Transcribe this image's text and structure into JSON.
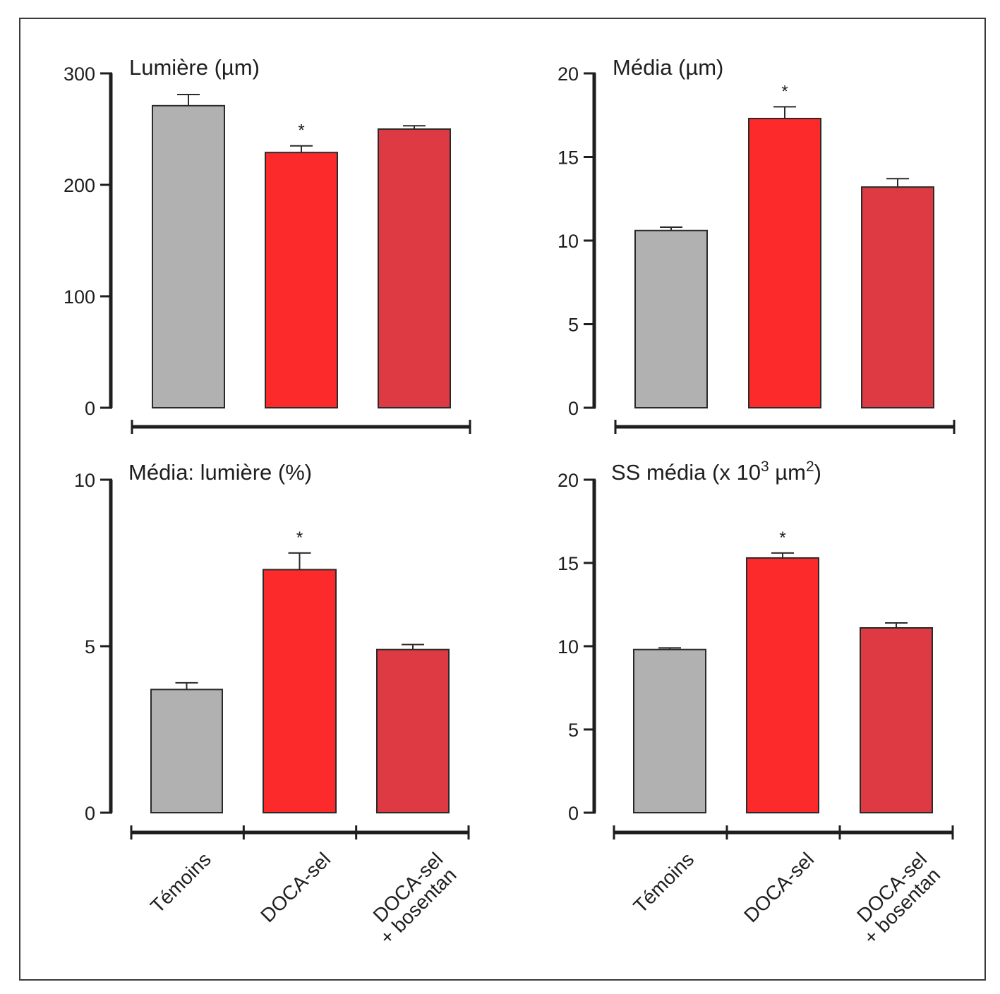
{
  "colors": {
    "temoins": "#b1b1b1",
    "doca": "#fc2a2a",
    "bosentan": "#dd3a44",
    "axis": "#1e1e1e"
  },
  "chart_data": [
    {
      "type": "bar",
      "id": "lumiere",
      "title": "Lumière (µm)",
      "categories": [
        "Témoins",
        "DOCA-sel",
        "DOCA-sel + bosentan"
      ],
      "values": [
        271,
        229,
        250
      ],
      "errors": [
        10,
        6,
        3
      ],
      "significance": [
        "",
        "*",
        ""
      ],
      "ylim": [
        0,
        300
      ],
      "yticks": [
        0,
        100,
        200,
        300
      ],
      "xlabel": "",
      "ylabel": ""
    },
    {
      "type": "bar",
      "id": "media",
      "title": "Média (µm)",
      "categories": [
        "Témoins",
        "DOCA-sel",
        "DOCA-sel + bosentan"
      ],
      "values": [
        10.6,
        17.3,
        13.2
      ],
      "errors": [
        0.2,
        0.7,
        0.5
      ],
      "significance": [
        "",
        "*",
        ""
      ],
      "ylim": [
        0,
        20
      ],
      "yticks": [
        0,
        5,
        10,
        15,
        20
      ],
      "xlabel": "",
      "ylabel": ""
    },
    {
      "type": "bar",
      "id": "media-lumiere",
      "title": "Média: lumière (%)",
      "categories": [
        "Témoins",
        "DOCA-sel",
        "DOCA-sel + bosentan"
      ],
      "values": [
        3.7,
        7.3,
        4.9
      ],
      "errors": [
        0.2,
        0.5,
        0.15
      ],
      "significance": [
        "",
        "*",
        ""
      ],
      "ylim": [
        0,
        10
      ],
      "yticks": [
        0,
        5,
        10
      ],
      "xlabel": "",
      "ylabel": ""
    },
    {
      "type": "bar",
      "id": "ss-media",
      "title": "SS média (x 10³ µm²)",
      "title_parts": {
        "prefix": "SS média (x 10",
        "exp1": "3",
        "mid": " µm",
        "exp2": "2",
        "suffix": ")"
      },
      "categories": [
        "Témoins",
        "DOCA-sel",
        "DOCA-sel + bosentan"
      ],
      "values": [
        9.8,
        15.3,
        11.1
      ],
      "errors": [
        0.1,
        0.3,
        0.3
      ],
      "significance": [
        "",
        "*",
        ""
      ],
      "ylim": [
        0,
        20
      ],
      "yticks": [
        0,
        5,
        10,
        15,
        20
      ],
      "xlabel": "",
      "ylabel": ""
    }
  ],
  "category_labels": {
    "temoins": "Témoins",
    "doca": "DOCA-sel",
    "bosentan_line1": "DOCA-sel",
    "bosentan_line2": "+ bosentan"
  }
}
